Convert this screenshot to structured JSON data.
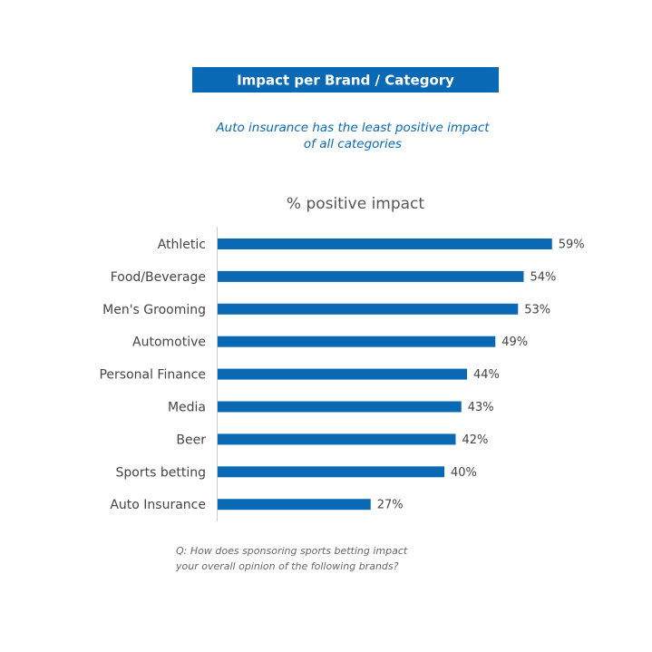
{
  "chart_data": {
    "type": "hbar",
    "title": "Impact per Brand / Category",
    "subtitle": [
      "Auto insurance has the least positive impact",
      "of all categories"
    ],
    "axis_label": "% positive impact",
    "categories": [
      "Athletic",
      "Food/Beverage",
      "Men's Grooming",
      "Automotive",
      "Personal Finance",
      "Media",
      "Beer",
      "Sports betting",
      "Auto Insurance"
    ],
    "values": [
      59,
      54,
      53,
      49,
      44,
      43,
      42,
      40,
      27
    ],
    "value_labels": [
      "59%",
      "54%",
      "53%",
      "49%",
      "44%",
      "43%",
      "42%",
      "40%",
      "27%"
    ],
    "color": "#0a69b4",
    "xlim": [
      0,
      60
    ],
    "footnote": [
      "Q: How does sponsoring sports betting impact",
      "your overall opinion of the following brands?"
    ]
  }
}
